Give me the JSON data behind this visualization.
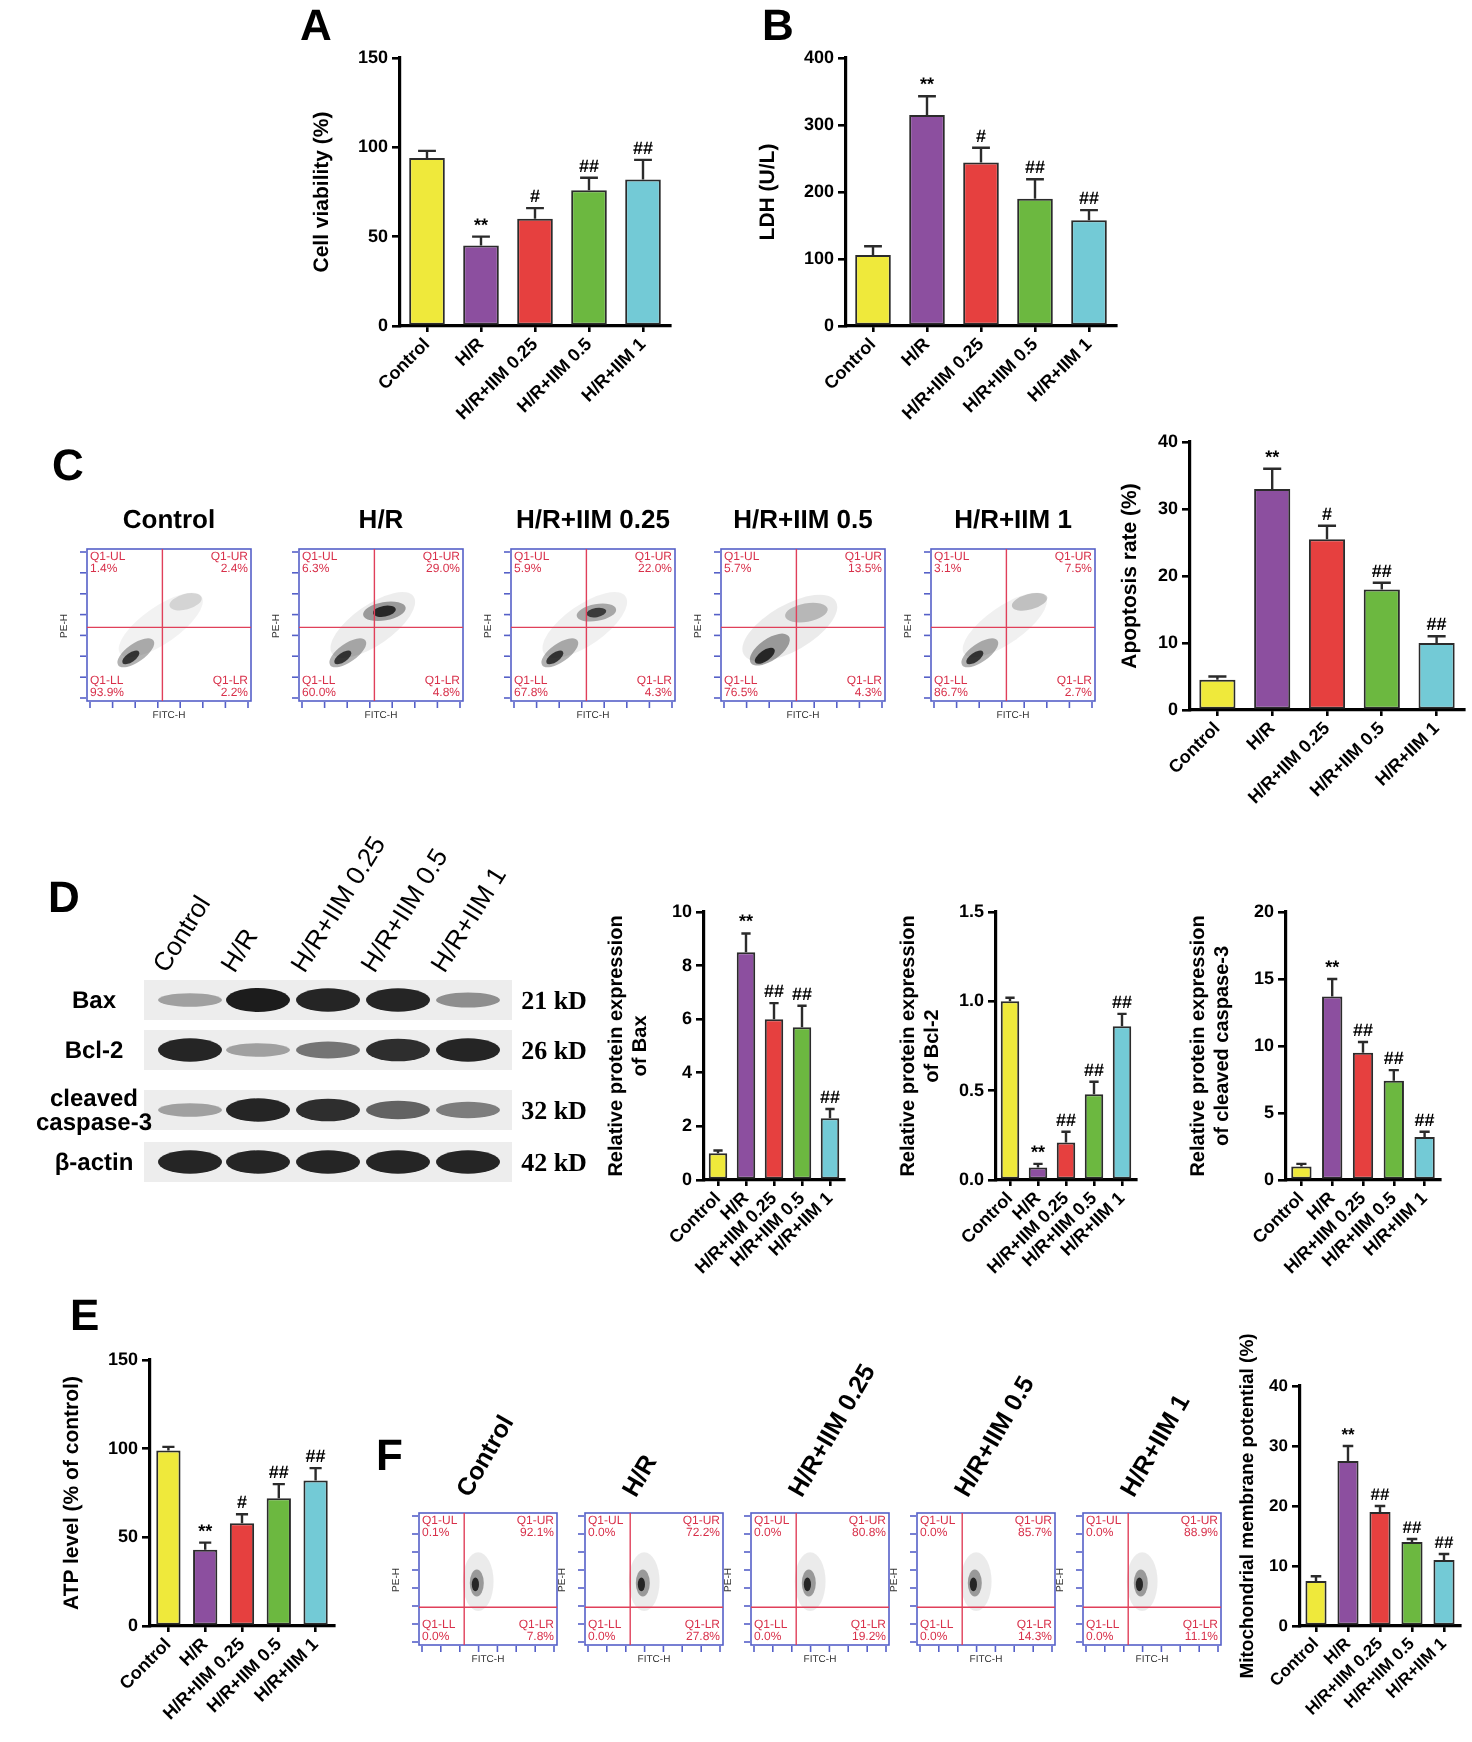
{
  "chart_data": [
    {
      "type": "bar",
      "title": "A",
      "categories": [
        "Control",
        "H/R",
        "H/R+IIM 0.25",
        "H/R+IIM 0.5",
        "H/R+IIM 1"
      ],
      "values": [
        94,
        45,
        60,
        76,
        82
      ],
      "errors": [
        4,
        5,
        6,
        7,
        11
      ],
      "colors": [
        "#efe93b",
        "#8c4f9f",
        "#e6403f",
        "#6cb840",
        "#73cad6"
      ],
      "ylabel": "Cell viability (%)",
      "ylim": [
        0,
        150
      ],
      "yticks": [
        0,
        50,
        100,
        150
      ],
      "annotations": [
        {
          "text": "**",
          "x": "H/R",
          "y": 50
        },
        {
          "text": "#",
          "x": "H/R+IIM 0.25",
          "y": 66
        },
        {
          "text": "##",
          "x": "H/R+IIM 0.5",
          "y": 83
        },
        {
          "text": "##",
          "x": "H/R+IIM 1",
          "y": 93
        }
      ]
    },
    {
      "type": "bar",
      "title": "B",
      "categories": [
        "Control",
        "H/R",
        "H/R+IIM 0.25",
        "H/R+IIM 0.5",
        "H/R+IIM 1"
      ],
      "values": [
        106,
        315,
        244,
        190,
        158
      ],
      "errors": [
        13,
        28,
        22,
        29,
        15
      ],
      "colors": [
        "#efe93b",
        "#8c4f9f",
        "#e6403f",
        "#6cb840",
        "#73cad6"
      ],
      "ylabel": "LDH (U/L)",
      "ylim": [
        0,
        400
      ],
      "yticks": [
        0,
        100,
        200,
        300,
        400
      ],
      "annotations": [
        {
          "text": "**",
          "x": "H/R",
          "y": 343
        },
        {
          "text": "#",
          "x": "H/R+IIM 0.25",
          "y": 266
        },
        {
          "text": "##",
          "x": "H/R+IIM 0.5",
          "y": 219
        },
        {
          "text": "##",
          "x": "H/R+IIM 1",
          "y": 173
        }
      ]
    },
    {
      "type": "other",
      "title": "C",
      "categories": [
        "Control",
        "H/R",
        "H/R+IIM 0.25",
        "H/R+IIM 0.5",
        "H/R+IIM 1"
      ],
      "xlabel": "FITC-H",
      "ylabel": "PE-H",
      "annotations": [
        "Q1-UL",
        "1.4%",
        "Q1-UR",
        "2.4%",
        "Q1-LL",
        "93.9%",
        "Q1-LR",
        "2.2%",
        "Q1-UL",
        "6.3%",
        "Q1-UR",
        "29.0%",
        "Q1-LL",
        "60.0%",
        "Q1-LR",
        "4.8%",
        "Q1-UL",
        "5.9%",
        "Q1-UR",
        "22.0%",
        "Q1-LL",
        "67.8%",
        "Q1-LR",
        "4.3%",
        "Q1-UL",
        "5.7%",
        "Q1-UR",
        "13.5%",
        "Q1-LL",
        "76.5%",
        "Q1-LR",
        "4.3%",
        "Q1-UL",
        "3.1%",
        "Q1-UR",
        "7.5%",
        "Q1-LL",
        "86.7%",
        "Q1-LR",
        "2.7%"
      ]
    },
    {
      "type": "bar",
      "categories": [
        "Control",
        "H/R",
        "H/R+IIM 0.25",
        "H/R+IIM 0.5",
        "H/R+IIM 1"
      ],
      "values": [
        4.5,
        33,
        25.5,
        18,
        10
      ],
      "errors": [
        0.5,
        3,
        2,
        1,
        1
      ],
      "colors": [
        "#efe93b",
        "#8c4f9f",
        "#e6403f",
        "#6cb840",
        "#73cad6"
      ],
      "ylabel": "Apoptosis rate (%)",
      "ylim": [
        0,
        40
      ],
      "yticks": [
        0,
        10,
        20,
        30,
        40
      ],
      "annotations": [
        {
          "text": "**",
          "x": "H/R",
          "y": 36
        },
        {
          "text": "#",
          "x": "H/R+IIM 0.25",
          "y": 27.5
        },
        {
          "text": "##",
          "x": "H/R+IIM 0.5",
          "y": 19
        },
        {
          "text": "##",
          "x": "H/R+IIM 1",
          "y": 11
        }
      ]
    },
    {
      "type": "other",
      "title": "D",
      "categories": [
        "Control",
        "H/R",
        "H/R+IIM 0.25",
        "H/R+IIM 0.5",
        "H/R+IIM 1"
      ],
      "y_categories": [
        "Bax",
        "Bcl-2",
        "cleaved caspase-3",
        "β-actin"
      ],
      "y2_categories": [
        "21 kD",
        "26 kD",
        "32 kD",
        "42 kD"
      ]
    },
    {
      "type": "bar",
      "categories": [
        "Control",
        "H/R",
        "H/R+IIM 0.25",
        "H/R+IIM 0.5",
        "H/R+IIM 1"
      ],
      "values": [
        1,
        8.5,
        6,
        5.7,
        2.3
      ],
      "errors": [
        0.1,
        0.7,
        0.6,
        0.8,
        0.35
      ],
      "colors": [
        "#efe93b",
        "#8c4f9f",
        "#e6403f",
        "#6cb840",
        "#73cad6"
      ],
      "ylabel": "Relative protein expression of Bax",
      "ylim": [
        0,
        10
      ],
      "yticks": [
        0,
        2,
        4,
        6,
        8,
        10
      ],
      "annotations": [
        {
          "text": "**",
          "x": "H/R",
          "y": 9.2
        },
        {
          "text": "##",
          "x": "H/R+IIM 0.25",
          "y": 6.6
        },
        {
          "text": "##",
          "x": "H/R+IIM 0.5",
          "y": 6.5
        },
        {
          "text": "##",
          "x": "H/R+IIM 1",
          "y": 2.65
        }
      ]
    },
    {
      "type": "bar",
      "categories": [
        "Control",
        "H/R",
        "H/R+IIM 0.25",
        "H/R+IIM 0.5",
        "H/R+IIM 1"
      ],
      "values": [
        1,
        0.07,
        0.21,
        0.48,
        0.86
      ],
      "errors": [
        0.02,
        0.02,
        0.06,
        0.07,
        0.07
      ],
      "colors": [
        "#efe93b",
        "#8c4f9f",
        "#e6403f",
        "#6cb840",
        "#73cad6"
      ],
      "ylabel": "Relative protein expression of Bcl-2",
      "ylim": [
        0,
        1.5
      ],
      "yticks": [
        {
          "value": 0,
          "label": "0.0"
        },
        0.5,
        {
          "value": 1,
          "label": "1.0"
        },
        1.5
      ],
      "annotations": [
        {
          "text": "**",
          "x": "H/R",
          "y": 0.09
        },
        {
          "text": "##",
          "x": "H/R+IIM 0.25",
          "y": 0.27
        },
        {
          "text": "##",
          "x": "H/R+IIM 0.5",
          "y": 0.55
        },
        {
          "text": "##",
          "x": "H/R+IIM 1",
          "y": 0.93
        }
      ]
    },
    {
      "type": "bar",
      "categories": [
        "Control",
        "H/R",
        "H/R+IIM 0.25",
        "H/R+IIM 0.5",
        "H/R+IIM 1"
      ],
      "values": [
        1,
        13.7,
        9.5,
        7.4,
        3.2
      ],
      "errors": [
        0.2,
        1.3,
        0.8,
        0.8,
        0.4
      ],
      "colors": [
        "#efe93b",
        "#8c4f9f",
        "#e6403f",
        "#6cb840",
        "#73cad6"
      ],
      "ylabel": "Relative protein expression of cleaved caspase-3",
      "ylim": [
        0,
        20
      ],
      "yticks": [
        0,
        5,
        10,
        15,
        20
      ],
      "annotations": [
        {
          "text": "**",
          "x": "H/R",
          "y": 15
        },
        {
          "text": "##",
          "x": "H/R+IIM 0.25",
          "y": 10.3
        },
        {
          "text": "##",
          "x": "H/R+IIM 0.5",
          "y": 8.2
        },
        {
          "text": "##",
          "x": "H/R+IIM 1",
          "y": 3.6
        }
      ]
    },
    {
      "type": "bar",
      "title": "E",
      "categories": [
        "Control",
        "H/R",
        "H/R+IIM 0.25",
        "H/R+IIM 0.5",
        "H/R+IIM 1"
      ],
      "values": [
        99,
        43,
        58,
        72,
        82
      ],
      "errors": [
        2,
        4,
        5,
        8,
        7
      ],
      "colors": [
        "#efe93b",
        "#8c4f9f",
        "#e6403f",
        "#6cb840",
        "#73cad6"
      ],
      "ylabel": "ATP level (% of control)",
      "ylim": [
        0,
        150
      ],
      "yticks": [
        0,
        50,
        100,
        150
      ],
      "annotations": [
        {
          "text": "**",
          "x": "H/R",
          "y": 47
        },
        {
          "text": "#",
          "x": "H/R+IIM 0.25",
          "y": 63
        },
        {
          "text": "##",
          "x": "H/R+IIM 0.5",
          "y": 80
        },
        {
          "text": "##",
          "x": "H/R+IIM 1",
          "y": 89
        }
      ]
    },
    {
      "type": "other",
      "title": "F",
      "categories": [
        "Control",
        "H/R",
        "H/R+IIM 0.25",
        "H/R+IIM 0.5",
        "H/R+IIM 1"
      ],
      "xlabel": "FITC-H",
      "ylabel": "PE-H",
      "annotations": [
        "Q1-UL",
        "0.1%",
        "Q1-UR",
        "92.1%",
        "Q1-LL",
        "0.0%",
        "Q1-LR",
        "7.8%",
        "Q1-UL",
        "0.0%",
        "Q1-UR",
        "72.2%",
        "Q1-LL",
        "0.0%",
        "Q1-LR",
        "27.8%",
        "Q1-UL",
        "0.0%",
        "Q1-UR",
        "80.8%",
        "Q1-LL",
        "0.0%",
        "Q1-LR",
        "19.2%",
        "Q1-UL",
        "0.0%",
        "Q1-UR",
        "85.7%",
        "Q1-LL",
        "0.0%",
        "Q1-LR",
        "14.3%",
        "Q1-UL",
        "0.0%",
        "Q1-UR",
        "88.9%",
        "Q1-LL",
        "0.0%",
        "Q1-LR",
        "11.1%"
      ]
    },
    {
      "type": "bar",
      "categories": [
        "Control",
        "H/R",
        "H/R+IIM 0.25",
        "H/R+IIM 0.5",
        "H/R+IIM 1"
      ],
      "values": [
        7.5,
        27.5,
        19,
        14,
        11
      ],
      "errors": [
        0.8,
        2.5,
        1,
        0.5,
        1
      ],
      "colors": [
        "#efe93b",
        "#8c4f9f",
        "#e6403f",
        "#6cb840",
        "#73cad6"
      ],
      "ylabel": "Mitochondrial membrane potential (%)",
      "ylim": [
        0,
        40
      ],
      "yticks": [
        0,
        10,
        20,
        30,
        40
      ],
      "annotations": [
        {
          "text": "**",
          "x": "H/R",
          "y": 30
        },
        {
          "text": "##",
          "x": "H/R+IIM 0.25",
          "y": 20
        },
        {
          "text": "##",
          "x": "H/R+IIM 0.5",
          "y": 14.5
        },
        {
          "text": "##",
          "x": "H/R+IIM 1",
          "y": 12
        }
      ]
    }
  ]
}
